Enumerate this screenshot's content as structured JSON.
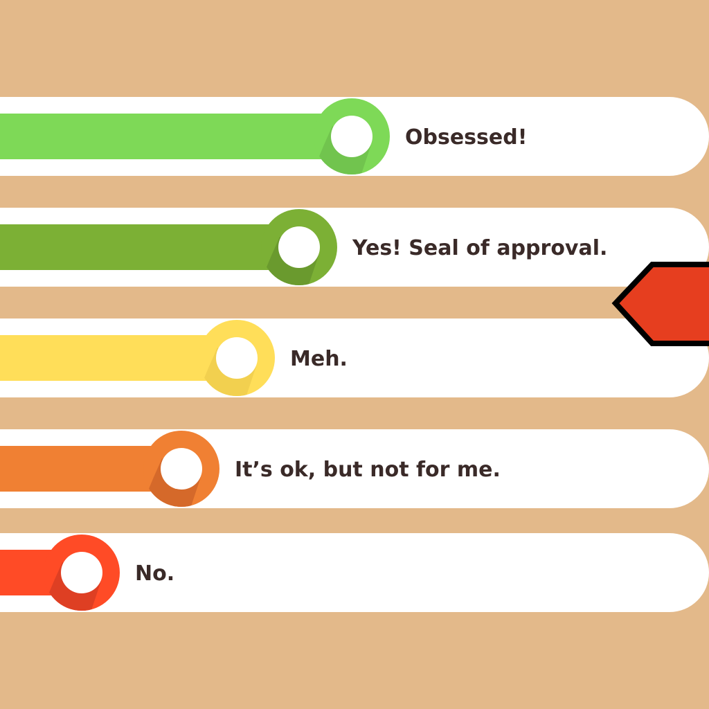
{
  "background_color": "#e3b98a",
  "rows": [
    {
      "label": "Obsessed!",
      "level": 5,
      "color": "#7ed957",
      "shadow": "#71c44e"
    },
    {
      "label": "Yes! Seal of approval.",
      "level": 4,
      "color": "#7cb035",
      "shadow": "#6a9a2e"
    },
    {
      "label": "Meh.",
      "level": 3,
      "color": "#ffde59",
      "shadow": "#f2d04f"
    },
    {
      "label": "It’s ok, but not for me.",
      "level": 2,
      "color": "#f08033",
      "shadow": "#d5692a"
    },
    {
      "label": "No.",
      "level": 1,
      "color": "#ff4b26",
      "shadow": "#de3f23"
    }
  ],
  "pointer": {
    "color": "#e63e1f",
    "outline": "#000000"
  }
}
